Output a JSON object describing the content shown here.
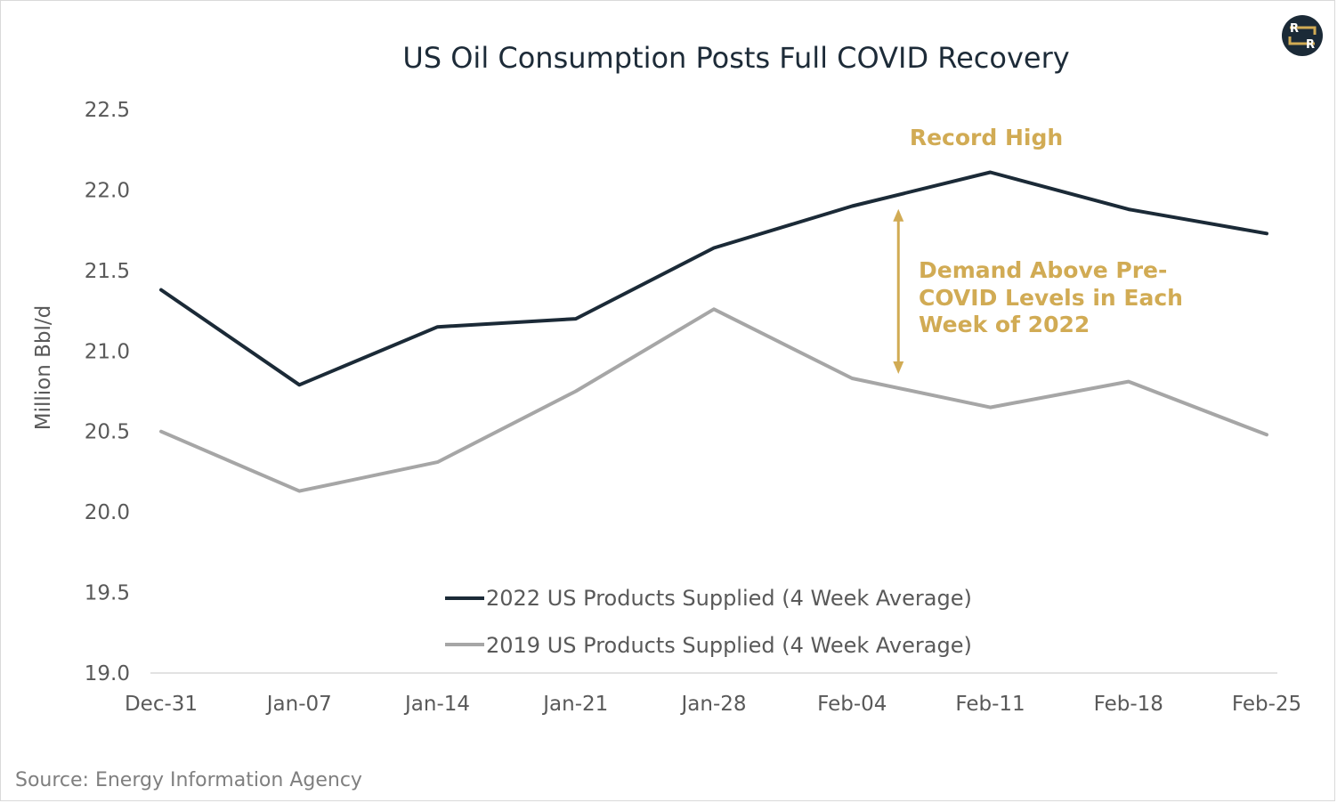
{
  "chart_data": {
    "type": "line",
    "title": "US Oil Consumption Posts Full COVID Recovery",
    "ylabel": "Million Bbl/d",
    "xlabel": "",
    "categories": [
      "Dec-31",
      "Jan-07",
      "Jan-14",
      "Jan-21",
      "Jan-28",
      "Feb-04",
      "Feb-11",
      "Feb-18",
      "Feb-25"
    ],
    "ylim": [
      19.0,
      22.5
    ],
    "yticks": [
      "19.0",
      "19.5",
      "20.0",
      "20.5",
      "21.0",
      "21.5",
      "22.0",
      "22.5"
    ],
    "grid": false,
    "legend_position": "bottom-center",
    "series": [
      {
        "name": "2022 US Products Supplied (4 Week Average)",
        "color": "#1b2a37",
        "values": [
          21.38,
          20.79,
          21.15,
          21.2,
          21.64,
          21.9,
          22.11,
          21.88,
          21.73
        ]
      },
      {
        "name": "2019 US Products Supplied (4 Week Average)",
        "color": "#a6a6a6",
        "values": [
          20.5,
          20.13,
          20.31,
          20.75,
          21.26,
          20.83,
          20.65,
          20.81,
          20.48
        ]
      }
    ],
    "annotations": {
      "record_high": "Record High",
      "demand_lines": [
        "Demand Above Pre-",
        "COVID Levels in Each",
        "Week of 2022"
      ],
      "arrow_range": [
        20.88,
        21.86
      ],
      "arrow_category": "Feb-04",
      "color": "#d1ab54"
    },
    "source": "Source: Energy Information Agency"
  },
  "logo": {
    "letters": [
      "R",
      "R"
    ],
    "bg_color": "#1b2a37",
    "accent_color": "#d1ab54"
  }
}
